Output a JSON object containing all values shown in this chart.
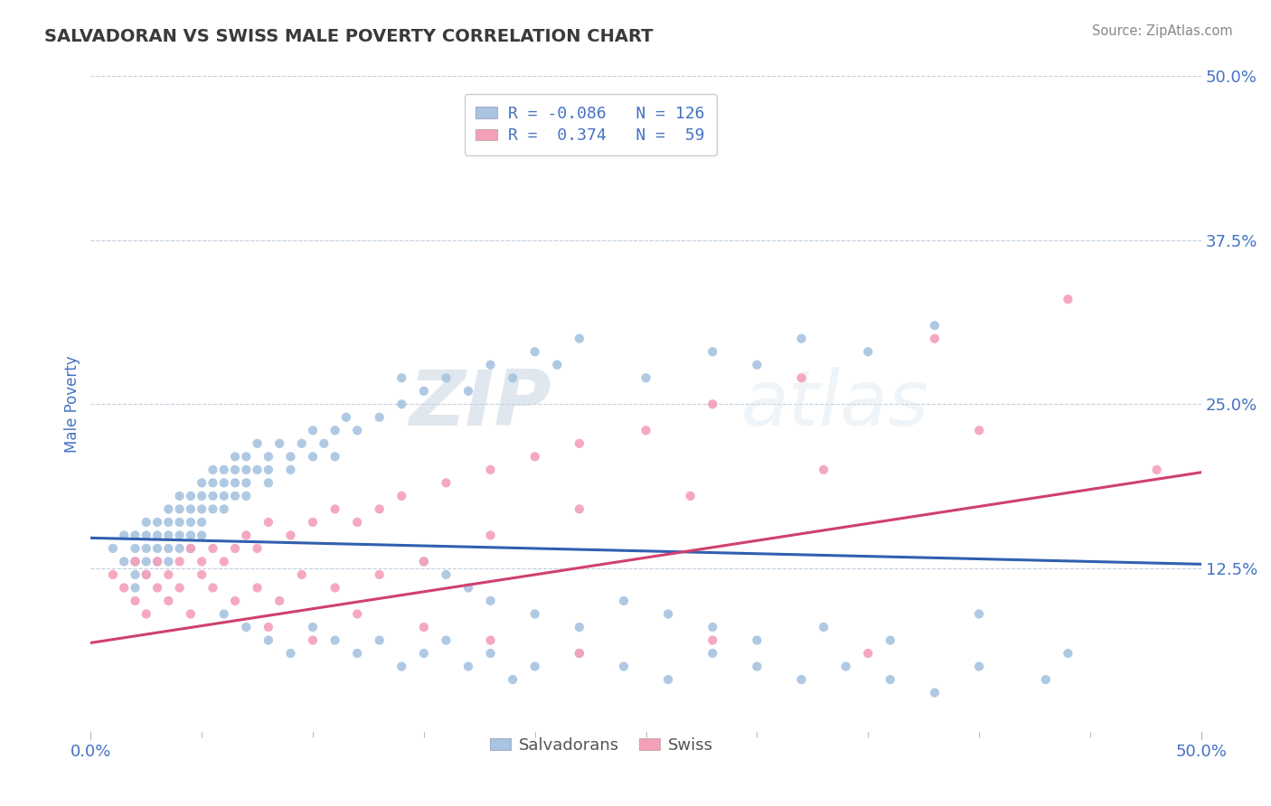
{
  "title": "SALVADORAN VS SWISS MALE POVERTY CORRELATION CHART",
  "source": "Source: ZipAtlas.com",
  "ylabel": "Male Poverty",
  "xlim": [
    0.0,
    0.5
  ],
  "ylim": [
    0.0,
    0.5
  ],
  "ytick_labels": [
    "12.5%",
    "25.0%",
    "37.5%",
    "50.0%"
  ],
  "ytick_positions": [
    0.125,
    0.25,
    0.375,
    0.5
  ],
  "grid_color": "#c0cfe0",
  "background_color": "#ffffff",
  "watermark_zip": "ZIP",
  "watermark_atlas": "atlas",
  "legend_R1": "-0.086",
  "legend_N1": "126",
  "legend_R2": "0.374",
  "legend_N2": "59",
  "salvadoran_color": "#a8c4e0",
  "swiss_color": "#f4a0b8",
  "salvadoran_line_color": "#3060b0",
  "swiss_line_color": "#d04070",
  "title_color": "#3a3a3a",
  "axis_label_color": "#4472c4",
  "tick_label_color": "#4472c4",
  "salvadoran_line": {
    "x0": 0.0,
    "x1": 0.5,
    "y0": 0.148,
    "y1": 0.128
  },
  "swiss_line": {
    "x0": 0.0,
    "x1": 0.5,
    "y0": 0.068,
    "y1": 0.198
  },
  "sal_x": [
    0.01,
    0.015,
    0.015,
    0.02,
    0.02,
    0.02,
    0.02,
    0.02,
    0.025,
    0.025,
    0.025,
    0.025,
    0.025,
    0.03,
    0.03,
    0.03,
    0.03,
    0.035,
    0.035,
    0.035,
    0.035,
    0.035,
    0.04,
    0.04,
    0.04,
    0.04,
    0.04,
    0.045,
    0.045,
    0.045,
    0.045,
    0.045,
    0.05,
    0.05,
    0.05,
    0.05,
    0.05,
    0.055,
    0.055,
    0.055,
    0.055,
    0.06,
    0.06,
    0.06,
    0.06,
    0.065,
    0.065,
    0.065,
    0.065,
    0.07,
    0.07,
    0.07,
    0.07,
    0.075,
    0.075,
    0.08,
    0.08,
    0.08,
    0.085,
    0.09,
    0.09,
    0.095,
    0.1,
    0.1,
    0.105,
    0.11,
    0.11,
    0.115,
    0.12,
    0.13,
    0.14,
    0.14,
    0.15,
    0.16,
    0.17,
    0.18,
    0.19,
    0.2,
    0.21,
    0.22,
    0.25,
    0.28,
    0.3,
    0.32,
    0.35,
    0.38,
    0.15,
    0.16,
    0.17,
    0.18,
    0.2,
    0.22,
    0.24,
    0.26,
    0.28,
    0.3,
    0.33,
    0.36,
    0.4,
    0.44,
    0.06,
    0.07,
    0.08,
    0.09,
    0.1,
    0.11,
    0.12,
    0.13,
    0.14,
    0.15,
    0.16,
    0.17,
    0.18,
    0.19,
    0.2,
    0.22,
    0.24,
    0.26,
    0.28,
    0.3,
    0.32,
    0.34,
    0.36,
    0.38,
    0.4,
    0.43
  ],
  "sal_y": [
    0.14,
    0.13,
    0.15,
    0.13,
    0.14,
    0.12,
    0.11,
    0.15,
    0.13,
    0.14,
    0.15,
    0.12,
    0.16,
    0.14,
    0.15,
    0.13,
    0.16,
    0.15,
    0.16,
    0.14,
    0.17,
    0.13,
    0.16,
    0.15,
    0.17,
    0.14,
    0.18,
    0.17,
    0.16,
    0.15,
    0.18,
    0.14,
    0.18,
    0.17,
    0.16,
    0.19,
    0.15,
    0.18,
    0.17,
    0.19,
    0.2,
    0.19,
    0.18,
    0.2,
    0.17,
    0.2,
    0.19,
    0.18,
    0.21,
    0.2,
    0.19,
    0.21,
    0.18,
    0.2,
    0.22,
    0.2,
    0.21,
    0.19,
    0.22,
    0.21,
    0.2,
    0.22,
    0.21,
    0.23,
    0.22,
    0.23,
    0.21,
    0.24,
    0.23,
    0.24,
    0.25,
    0.27,
    0.26,
    0.27,
    0.26,
    0.28,
    0.27,
    0.29,
    0.28,
    0.3,
    0.27,
    0.29,
    0.28,
    0.3,
    0.29,
    0.31,
    0.13,
    0.12,
    0.11,
    0.1,
    0.09,
    0.08,
    0.1,
    0.09,
    0.08,
    0.07,
    0.08,
    0.07,
    0.09,
    0.06,
    0.09,
    0.08,
    0.07,
    0.06,
    0.08,
    0.07,
    0.06,
    0.07,
    0.05,
    0.06,
    0.07,
    0.05,
    0.06,
    0.04,
    0.05,
    0.06,
    0.05,
    0.04,
    0.06,
    0.05,
    0.04,
    0.05,
    0.04,
    0.03,
    0.05,
    0.04
  ],
  "swi_x": [
    0.01,
    0.015,
    0.02,
    0.02,
    0.025,
    0.03,
    0.03,
    0.035,
    0.04,
    0.04,
    0.045,
    0.05,
    0.05,
    0.055,
    0.06,
    0.065,
    0.07,
    0.075,
    0.08,
    0.09,
    0.1,
    0.11,
    0.12,
    0.13,
    0.14,
    0.16,
    0.18,
    0.2,
    0.22,
    0.25,
    0.28,
    0.32,
    0.38,
    0.44,
    0.48,
    0.025,
    0.035,
    0.045,
    0.055,
    0.065,
    0.075,
    0.085,
    0.095,
    0.11,
    0.13,
    0.15,
    0.18,
    0.22,
    0.27,
    0.33,
    0.4,
    0.08,
    0.1,
    0.12,
    0.15,
    0.18,
    0.22,
    0.28,
    0.35
  ],
  "swi_y": [
    0.12,
    0.11,
    0.13,
    0.1,
    0.12,
    0.13,
    0.11,
    0.12,
    0.13,
    0.11,
    0.14,
    0.13,
    0.12,
    0.14,
    0.13,
    0.14,
    0.15,
    0.14,
    0.16,
    0.15,
    0.16,
    0.17,
    0.16,
    0.17,
    0.18,
    0.19,
    0.2,
    0.21,
    0.22,
    0.23,
    0.25,
    0.27,
    0.3,
    0.33,
    0.2,
    0.09,
    0.1,
    0.09,
    0.11,
    0.1,
    0.11,
    0.1,
    0.12,
    0.11,
    0.12,
    0.13,
    0.15,
    0.17,
    0.18,
    0.2,
    0.23,
    0.08,
    0.07,
    0.09,
    0.08,
    0.07,
    0.06,
    0.07,
    0.06
  ]
}
